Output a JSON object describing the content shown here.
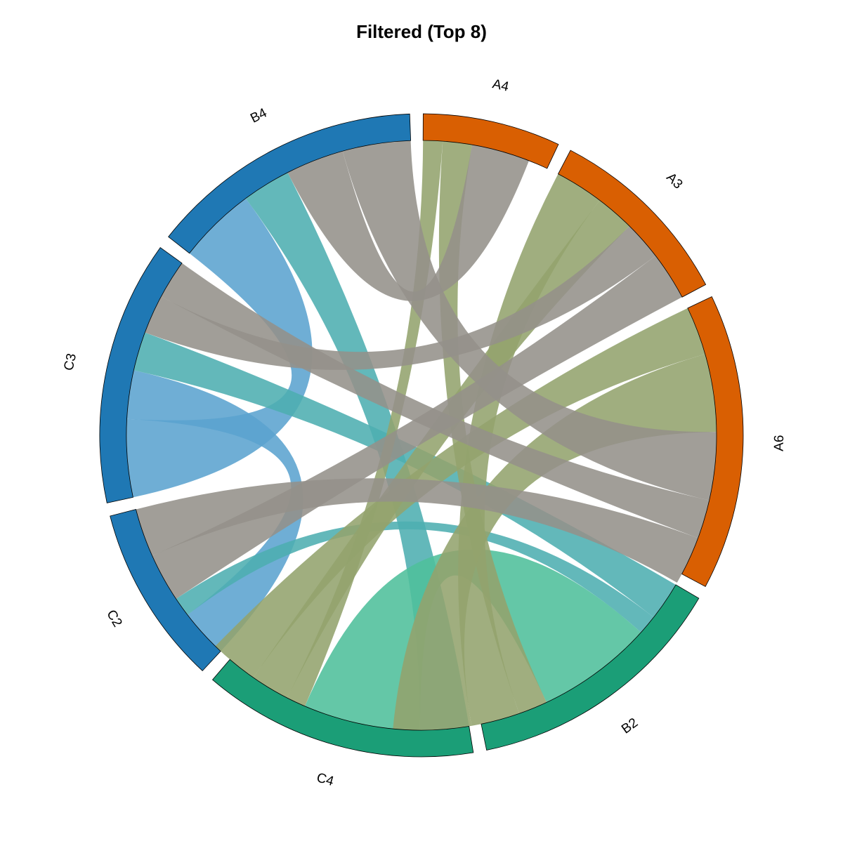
{
  "chart_data": {
    "type": "chord",
    "title": "Filtered (Top 8)",
    "groups": [
      {
        "name": "A4",
        "color": "#d95f02",
        "size": 13
      },
      {
        "name": "A3",
        "color": "#d95f02",
        "size": 18
      },
      {
        "name": "A6",
        "color": "#d95f02",
        "size": 28
      },
      {
        "name": "B2",
        "color": "#1b9e77",
        "size": 25
      },
      {
        "name": "C4",
        "color": "#1b9e77",
        "size": 26
      },
      {
        "name": "C2",
        "color": "#1f78b4",
        "size": 17
      },
      {
        "name": "C3",
        "color": "#1f78b4",
        "size": 25
      },
      {
        "name": "B4",
        "color": "#1f78b4",
        "size": 26
      }
    ],
    "links": [
      {
        "source": "B4",
        "target": "C3",
        "value": 8,
        "color": "#5ba3cf"
      },
      {
        "source": "C2",
        "target": "C3",
        "value": 5,
        "color": "#5ba3cf"
      },
      {
        "source": "B4",
        "target": "C4",
        "value": 5,
        "color": "#4daeb0"
      },
      {
        "source": "C3",
        "target": "B2",
        "value": 4,
        "color": "#4daeb0"
      },
      {
        "source": "C2",
        "target": "B2",
        "value": 2,
        "color": "#4daeb0"
      },
      {
        "source": "C4",
        "target": "B2",
        "value": 12,
        "color": "#4fbf9b"
      },
      {
        "source": "A4",
        "target": "C4",
        "value": 2,
        "color": "#93a36d"
      },
      {
        "source": "A4",
        "target": "B2",
        "value": 3,
        "color": "#93a36d"
      },
      {
        "source": "A3",
        "target": "B2",
        "value": 5,
        "color": "#93a36d"
      },
      {
        "source": "A3",
        "target": "C4",
        "value": 4,
        "color": "#93a36d"
      },
      {
        "source": "A6",
        "target": "C4",
        "value": 5,
        "color": "#93a36d"
      },
      {
        "source": "A6",
        "target": "B2",
        "value": 8,
        "color": "#93a36d"
      },
      {
        "source": "A4",
        "target": "B4",
        "value": 6,
        "color": "#94918a"
      },
      {
        "source": "A3",
        "target": "C3",
        "value": 4,
        "color": "#94918a"
      },
      {
        "source": "A3",
        "target": "C2",
        "value": 5,
        "color": "#94918a"
      },
      {
        "source": "A6",
        "target": "B4",
        "value": 7,
        "color": "#94918a"
      },
      {
        "source": "A6",
        "target": "C3",
        "value": 4,
        "color": "#94918a"
      },
      {
        "source": "A6",
        "target": "C2",
        "value": 5,
        "color": "#94918a"
      },
      {
        "source": "B4",
        "target": "C3",
        "value": 0,
        "color": "#94918a"
      }
    ]
  }
}
